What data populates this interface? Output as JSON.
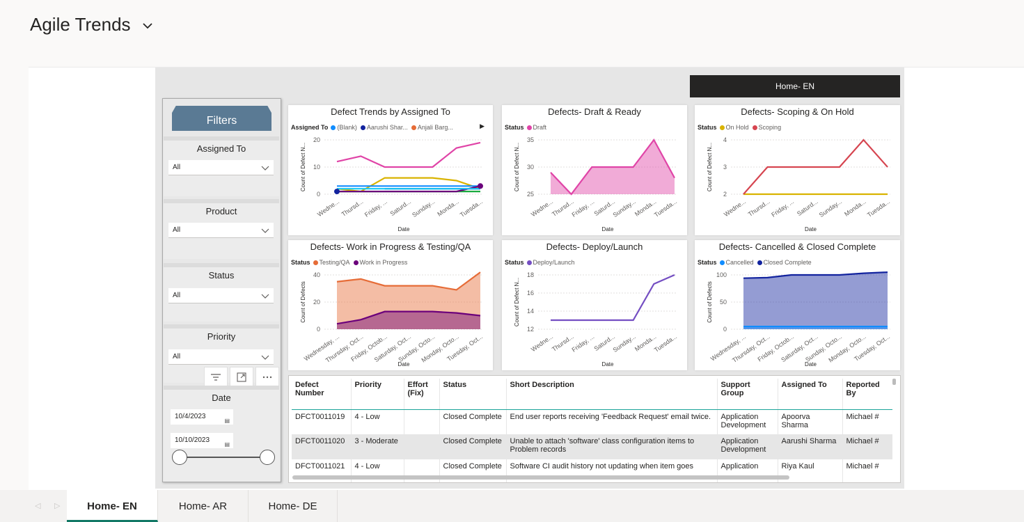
{
  "report": {
    "title": "Agile Trends",
    "home_button": "Home- EN"
  },
  "filters": {
    "header": "Filters",
    "assigned_to": {
      "label": "Assigned To",
      "value": "All"
    },
    "product": {
      "label": "Product",
      "value": "All"
    },
    "status": {
      "label": "Status",
      "value": "All"
    },
    "priority": {
      "label": "Priority",
      "value": "All"
    },
    "date": {
      "label": "Date",
      "start": "10/4/2023",
      "end": "10/10/2023"
    }
  },
  "charts_common": {
    "xlabel": "Date"
  },
  "chart_data": [
    {
      "type": "line",
      "title": "Defect Trends by Assigned To",
      "legend_title": "Assigned To",
      "legend": [
        {
          "name": "(Blank)",
          "color": "#118DFF"
        },
        {
          "name": "Aarushi Shar...",
          "color": "#12239E"
        },
        {
          "name": "Anjali Barg...",
          "color": "#E66C37"
        }
      ],
      "xlabel": "Date",
      "ylabel": "Count of Defect N...",
      "categories": [
        "Wedne...",
        "Thursd...",
        "Friday, ...",
        "Saturd...",
        "Sunday...",
        "Monda...",
        "Tuesda..."
      ],
      "ylim": [
        0,
        20
      ],
      "yticks": [
        0,
        10,
        20
      ],
      "series": [
        {
          "color": "#E044A7",
          "values": [
            12,
            14,
            10,
            10,
            10,
            17,
            19
          ]
        },
        {
          "color": "#D9B300",
          "values": [
            2,
            1,
            6,
            6,
            6,
            5,
            2
          ]
        },
        {
          "color": "#118DFF",
          "values": [
            3,
            3,
            3,
            3,
            3,
            3,
            3
          ]
        },
        {
          "color": "#12239E",
          "values": [
            null,
            null,
            2,
            2,
            2,
            2,
            2
          ]
        },
        {
          "color": "#1AAB40",
          "values": [
            1,
            1,
            1,
            1,
            1,
            1,
            1
          ]
        },
        {
          "color": "#6B007B",
          "values": [
            1,
            1,
            1,
            1,
            1,
            1,
            3
          ]
        },
        {
          "color": "#15C6F4",
          "values": [
            2,
            2,
            2,
            2,
            2,
            2,
            2
          ]
        }
      ]
    },
    {
      "type": "area",
      "title": "Defects- Draft & Ready",
      "legend_title": "Status",
      "legend": [
        {
          "name": "Draft",
          "color": "#E044A7"
        }
      ],
      "xlabel": "Date",
      "ylabel": "Count of Defect N...",
      "categories": [
        "Wedne...",
        "Thursd...",
        "Friday, ...",
        "Saturd...",
        "Sunday...",
        "Monda...",
        "Tuesda..."
      ],
      "ylim": [
        25,
        35
      ],
      "yticks": [
        25,
        30,
        35
      ],
      "series": [
        {
          "name": "Draft",
          "color": "#E044A7",
          "values": [
            29,
            25,
            30,
            30,
            30,
            35,
            28
          ]
        }
      ]
    },
    {
      "type": "line",
      "title": "Defects- Scoping & On Hold",
      "legend_title": "Status",
      "legend": [
        {
          "name": "On Hold",
          "color": "#D9B300"
        },
        {
          "name": "Scoping",
          "color": "#D64550"
        }
      ],
      "xlabel": "Date",
      "ylabel": "Count of Defect N...",
      "categories": [
        "Wedne...",
        "Thursd...",
        "Friday, ...",
        "Saturd...",
        "Sunday...",
        "Monda...",
        "Tuesda..."
      ],
      "ylim": [
        2,
        4
      ],
      "yticks": [
        2,
        3,
        4
      ],
      "series": [
        {
          "name": "On Hold",
          "color": "#D9B300",
          "values": [
            2,
            2,
            2,
            2,
            2,
            2,
            2
          ]
        },
        {
          "name": "Scoping",
          "color": "#D64550",
          "values": [
            2,
            3,
            3,
            3,
            3,
            4,
            3
          ]
        }
      ]
    },
    {
      "type": "area",
      "title": "Defects- Work in Progress & Testing/QA",
      "legend_title": "Status",
      "legend": [
        {
          "name": "Testing/QA",
          "color": "#E66C37"
        },
        {
          "name": "Work in Progress",
          "color": "#6B007B"
        }
      ],
      "xlabel": "Date",
      "ylabel": "Count of Defects",
      "categories": [
        "Wednesday, ...",
        "Thursday, Oct...",
        "Friday, Octob...",
        "Saturday, Oct...",
        "Sunday, Octo...",
        "Monday, Octo...",
        "Tuesday, Oct..."
      ],
      "ylim": [
        0,
        40
      ],
      "yticks": [
        0,
        20,
        40
      ],
      "series": [
        {
          "name": "Testing/QA",
          "color": "#E66C37",
          "values": [
            35,
            37,
            32,
            32,
            32,
            29,
            42
          ]
        },
        {
          "name": "Work in Progress",
          "color": "#6B007B",
          "values": [
            4,
            7,
            13,
            13,
            13,
            12,
            10
          ]
        }
      ]
    },
    {
      "type": "line",
      "title": "Defects- Deploy/Launch",
      "legend_title": "Status",
      "legend": [
        {
          "name": "Deploy/Launch",
          "color": "#744EC2"
        }
      ],
      "xlabel": "Date",
      "ylabel": "Count of Defect N...",
      "categories": [
        "Wedne...",
        "Thursd...",
        "Friday, ...",
        "Saturd...",
        "Sunday...",
        "Monda...",
        "Tuesda..."
      ],
      "ylim": [
        12,
        18
      ],
      "yticks": [
        12,
        14,
        16,
        18
      ],
      "series": [
        {
          "name": "Deploy/Launch",
          "color": "#744EC2",
          "values": [
            13,
            13,
            13,
            13,
            13,
            17,
            18
          ]
        }
      ]
    },
    {
      "type": "area",
      "title": "Defects- Cancelled & Closed Complete",
      "legend_title": "Status",
      "legend": [
        {
          "name": "Cancelled",
          "color": "#118DFF"
        },
        {
          "name": "Closed Complete",
          "color": "#12239E"
        }
      ],
      "xlabel": "Date",
      "ylabel": "Count of Defects",
      "categories": [
        "Wednesday, ...",
        "Thursday, Oct...",
        "Friday, Octob...",
        "Saturday, Oct...",
        "Sunday, Octo...",
        "Monday, Octo...",
        "Tuesday, Oct..."
      ],
      "ylim": [
        0,
        100
      ],
      "yticks": [
        0,
        50,
        100
      ],
      "series": [
        {
          "name": "Closed Complete",
          "color": "#12239E",
          "values": [
            94,
            95,
            100,
            100,
            100,
            103,
            105
          ]
        },
        {
          "name": "Cancelled",
          "color": "#118DFF",
          "values": [
            5,
            5,
            5,
            5,
            5,
            5,
            5
          ]
        }
      ]
    }
  ],
  "table": {
    "headers": [
      "Defect\nNumber",
      "Priority",
      "Effort\n(Fix)",
      "Status",
      "Short Description",
      "Support\nGroup",
      "Assigned To",
      "Reported By"
    ],
    "rows": [
      [
        "DFCT0011019",
        "4 - Low",
        "",
        "Closed Complete",
        "End user reports receiving 'Feedback Request' email twice.",
        "Application Development",
        "Apoorva Sharma",
        "Michael #"
      ],
      [
        "DFCT0011020",
        "3 - Moderate",
        "",
        "Closed Complete",
        "Unable to attach 'software' class configuration items to Problem records",
        "Application Development",
        "Aarushi Sharma",
        "Michael #"
      ],
      [
        "DFCT0011021",
        "4 - Low",
        "",
        "Closed Complete",
        "Software CI audit history not updating when item goes",
        "Application",
        "Riya Kaul",
        "Michael #"
      ]
    ]
  },
  "page_tabs": [
    "Home- EN",
    "Home- AR",
    "Home- DE"
  ],
  "active_tab": 0
}
